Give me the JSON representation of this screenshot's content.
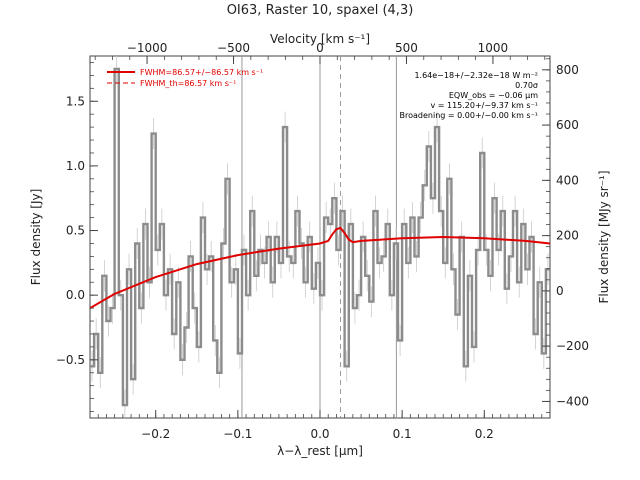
{
  "chart_data": {
    "type": "line",
    "title": "OI63, Raster 10, spaxel (4,3)",
    "xlabel": "λ−λ_rest [μm]",
    "ylabel": "Flux density [Jy]",
    "top_axis_label": "Velocity [km s⁻¹]",
    "right_axis_label": "Flux density [MJy sr⁻¹]",
    "xlim": [
      -0.28,
      0.28
    ],
    "ylim": [
      -0.95,
      1.85
    ],
    "velocity_lim": [
      -1330,
      1330
    ],
    "right_lim": [
      -460,
      850
    ],
    "x_ticks": [
      -0.2,
      -0.1,
      0.0,
      0.1,
      0.2
    ],
    "x_tick_labels": [
      "−0.2",
      "−0.1",
      "0.0",
      "0.1",
      "0.2"
    ],
    "y_ticks": [
      -0.5,
      0.0,
      0.5,
      1.0,
      1.5
    ],
    "y_tick_labels": [
      "−0.5",
      "0.0",
      "0.5",
      "1.0",
      "1.5"
    ],
    "top_ticks": [
      -1000,
      -500,
      0,
      500,
      1000
    ],
    "top_tick_labels": [
      "−1000",
      "−500",
      "0",
      "500",
      "1000"
    ],
    "right_ticks": [
      -400,
      -200,
      0,
      200,
      400,
      600,
      800
    ],
    "right_tick_labels": [
      "−400",
      "−200",
      "0",
      "200",
      "400",
      "600",
      "800"
    ],
    "vertical_lines": [
      -0.095,
      0.0,
      0.093
    ],
    "vertical_dashed": [
      0.025
    ],
    "legend": [
      {
        "label": "FWHM=86.57+/−86.57 km s⁻¹",
        "style": "solid",
        "color": "#e00000"
      },
      {
        "label": "FWHM_th=86.57 km s⁻¹",
        "style": "dashed",
        "color": "#e00000"
      }
    ],
    "annotations": [
      "1.64e−18+/−2.32e−18 W m⁻²",
      "0.70σ",
      "EQW_obs = −0.06 μm",
      "v = 115.20+/−9.37 km s⁻¹",
      "Broadening = 0.00+/−0.00 km s⁻¹"
    ],
    "series": [
      {
        "name": "",
        "style": "steps",
        "color": "#8c8c8c",
        "x": [
          -0.28,
          -0.275,
          -0.27,
          -0.265,
          -0.26,
          -0.255,
          -0.25,
          -0.245,
          -0.24,
          -0.235,
          -0.23,
          -0.225,
          -0.22,
          -0.215,
          -0.21,
          -0.205,
          -0.2,
          -0.195,
          -0.19,
          -0.185,
          -0.18,
          -0.175,
          -0.17,
          -0.165,
          -0.16,
          -0.155,
          -0.15,
          -0.145,
          -0.14,
          -0.135,
          -0.13,
          -0.125,
          -0.12,
          -0.115,
          -0.11,
          -0.105,
          -0.1,
          -0.095,
          -0.09,
          -0.085,
          -0.08,
          -0.075,
          -0.07,
          -0.065,
          -0.06,
          -0.055,
          -0.05,
          -0.045,
          -0.04,
          -0.035,
          -0.03,
          -0.025,
          -0.02,
          -0.015,
          -0.01,
          -0.005,
          0.0,
          0.005,
          0.01,
          0.015,
          0.02,
          0.025,
          0.03,
          0.035,
          0.04,
          0.045,
          0.05,
          0.055,
          0.06,
          0.065,
          0.07,
          0.075,
          0.08,
          0.085,
          0.09,
          0.095,
          0.1,
          0.105,
          0.11,
          0.115,
          0.12,
          0.125,
          0.13,
          0.135,
          0.14,
          0.145,
          0.15,
          0.155,
          0.16,
          0.165,
          0.17,
          0.175,
          0.18,
          0.185,
          0.19,
          0.195,
          0.2,
          0.205,
          0.21,
          0.215,
          0.22,
          0.225,
          0.23,
          0.235,
          0.24,
          0.245,
          0.25,
          0.255,
          0.26,
          0.265,
          0.27,
          0.275
        ],
        "y": [
          -0.55,
          -0.3,
          -0.6,
          0.15,
          -0.2,
          -0.1,
          1.75,
          0.0,
          -0.85,
          0.2,
          -0.65,
          0.4,
          -0.1,
          0.55,
          0.1,
          1.25,
          0.35,
          0.55,
          0.0,
          0.2,
          -0.3,
          0.1,
          -0.5,
          -0.25,
          0.3,
          -0.1,
          -0.4,
          0.6,
          0.2,
          0.3,
          -0.35,
          -0.6,
          0.4,
          0.9,
          0.1,
          0.2,
          -0.45,
          0.35,
          0.0,
          0.65,
          0.15,
          0.35,
          0.25,
          0.45,
          0.1,
          0.45,
          0.25,
          1.3,
          0.3,
          0.25,
          0.65,
          0.4,
          0.1,
          0.45,
          0.05,
          0.25,
          0.0,
          0.6,
          0.55,
          0.75,
          0.35,
          0.65,
          -0.55,
          0.55,
          -0.1,
          0.0,
          0.45,
          0.15,
          -0.05,
          0.65,
          0.25,
          0.3,
          0.55,
          0.0,
          0.4,
          -0.35,
          0.55,
          0.25,
          0.6,
          0.3,
          0.6,
          0.85,
          1.15,
          0.75,
          1.3,
          0.65,
          0.25,
          0.9,
          0.2,
          -0.15,
          0.45,
          -0.55,
          0.15,
          -0.4,
          0.35,
          1.1,
          0.35,
          0.15,
          0.75,
          0.35,
          0.65,
          0.05,
          0.3,
          0.65,
          0.1,
          0.55,
          0.2,
          0.45,
          -0.3,
          0.1,
          -0.45,
          0.2
        ]
      },
      {
        "name": "",
        "style": "line",
        "color": "#e00000",
        "x": [
          -0.28,
          -0.25,
          -0.2,
          -0.15,
          -0.1,
          -0.05,
          0.0,
          0.01,
          0.015,
          0.02,
          0.025,
          0.03,
          0.035,
          0.04,
          0.05,
          0.1,
          0.15,
          0.2,
          0.25,
          0.28
        ],
        "y": [
          -0.1,
          0.01,
          0.14,
          0.24,
          0.31,
          0.36,
          0.4,
          0.42,
          0.47,
          0.51,
          0.52,
          0.48,
          0.43,
          0.41,
          0.42,
          0.44,
          0.45,
          0.44,
          0.42,
          0.4
        ]
      }
    ]
  }
}
